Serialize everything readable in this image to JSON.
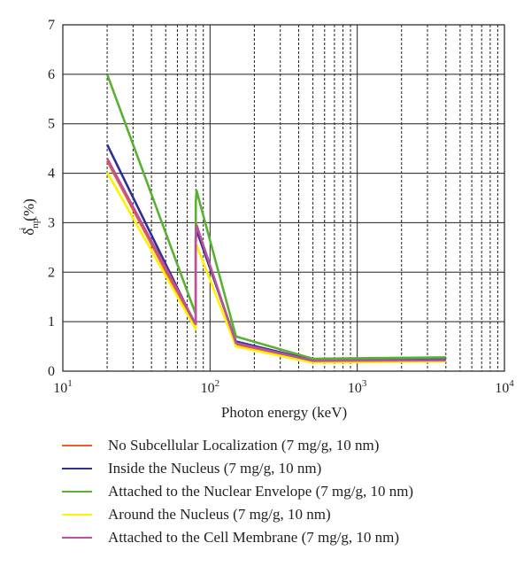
{
  "chart_data": {
    "type": "line",
    "xscale": "log",
    "xlim": [
      10,
      10000
    ],
    "ylim": [
      0,
      7
    ],
    "xlabel": "Photon energy (keV)",
    "ylabel": {
      "main": "δ",
      "sup": "i",
      "sub": "np",
      "unit": "(%)"
    },
    "xticks": [
      {
        "base": "10",
        "exp": "1",
        "value": 10
      },
      {
        "base": "10",
        "exp": "2",
        "value": 100
      },
      {
        "base": "10",
        "exp": "3",
        "value": 1000
      },
      {
        "base": "10",
        "exp": "4",
        "value": 10000
      }
    ],
    "yticks": [
      "0",
      "1",
      "2",
      "3",
      "4",
      "5",
      "6",
      "7"
    ],
    "grid": true,
    "legend_position": "bottom",
    "series": [
      {
        "name": "No Subcellular Localization (7 mg/g, 10 nm)",
        "color": "#f15a29",
        "x": [
          20,
          80,
          80,
          81,
          150,
          500,
          4000
        ],
        "y": [
          4.25,
          0.88,
          2.6,
          2.95,
          0.55,
          0.19,
          0.2
        ]
      },
      {
        "name": "Inside the Nucleus (7 mg/g, 10 nm)",
        "color": "#2e3192",
        "x": [
          20,
          80,
          80,
          81,
          150,
          500,
          4000
        ],
        "y": [
          4.58,
          0.92,
          2.7,
          2.85,
          0.6,
          0.22,
          0.24
        ]
      },
      {
        "name": "Attached to the Nuclear Envelope (7 mg/g, 10 nm)",
        "color": "#5ab031",
        "x": [
          20,
          80,
          80,
          81,
          150,
          500,
          4000
        ],
        "y": [
          6.0,
          1.15,
          3.4,
          3.65,
          0.7,
          0.25,
          0.28
        ]
      },
      {
        "name": "Around the Nucleus (7 mg/g, 10 nm)",
        "color": "#fff200",
        "x": [
          20,
          80,
          80,
          81,
          150,
          500,
          4000
        ],
        "y": [
          4.02,
          0.85,
          2.4,
          2.55,
          0.5,
          0.17,
          0.2
        ]
      },
      {
        "name": "Attached to the Cell Membrane (7 mg/g, 10 nm)",
        "color": "#b9529f",
        "x": [
          20,
          80,
          80,
          81,
          150,
          500,
          4000
        ],
        "y": [
          4.3,
          0.95,
          2.65,
          2.95,
          0.57,
          0.21,
          0.22
        ]
      }
    ]
  }
}
